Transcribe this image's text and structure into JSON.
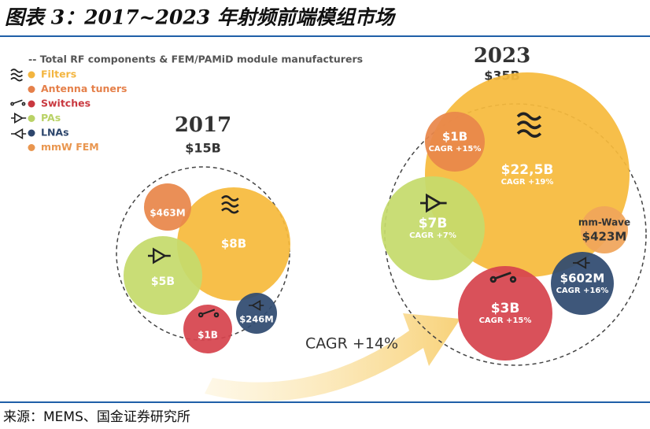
{
  "title": "图表 3：2017~2023 年射频前端模组市场",
  "source": "来源：MEMS、国金证券研究所",
  "legend": {
    "heading": "-- Total RF components & FEM/PAMiD module manufacturers",
    "items": [
      {
        "label": "Filters",
        "color": "#f3b53f"
      },
      {
        "label": "Antenna tuners",
        "color": "#e5804a"
      },
      {
        "label": "Switches",
        "color": "#c9383f"
      },
      {
        "label": "PAs",
        "color": "#b9d266"
      },
      {
        "label": "LNAs",
        "color": "#2d466c"
      },
      {
        "label": "mmW FEM",
        "color": "#e9964f"
      }
    ]
  },
  "arrow_label": "CAGR +14%",
  "groups": [
    {
      "year": "2017",
      "total": "$15B",
      "bubbles": [
        {
          "label": "$8B",
          "color": "#f6ba3c"
        },
        {
          "label": "$463M",
          "color": "#e8864a"
        },
        {
          "label": "$5B",
          "color": "#c5da6c"
        },
        {
          "label": "$1B",
          "color": "#d6444d"
        },
        {
          "label": "$246M",
          "color": "#2f4a70"
        }
      ]
    },
    {
      "year": "2023",
      "total": "$35B",
      "bubbles": [
        {
          "label": "$22,5B",
          "cagr": "CAGR +19%",
          "color": "#f6ba3c"
        },
        {
          "label": "$1B",
          "cagr": "CAGR +15%",
          "color": "#e8864a"
        },
        {
          "label": "$7B",
          "cagr": "CAGR +7%",
          "color": "#c5da6c"
        },
        {
          "label": "$3B",
          "cagr": "CAGR +15%",
          "color": "#d6444d"
        },
        {
          "label": "$602M",
          "cagr": "CAGR +16%",
          "color": "#2f4a70"
        },
        {
          "name": "mm-Wave",
          "label": "$423M",
          "color": "#f0a55a"
        }
      ]
    }
  ]
}
